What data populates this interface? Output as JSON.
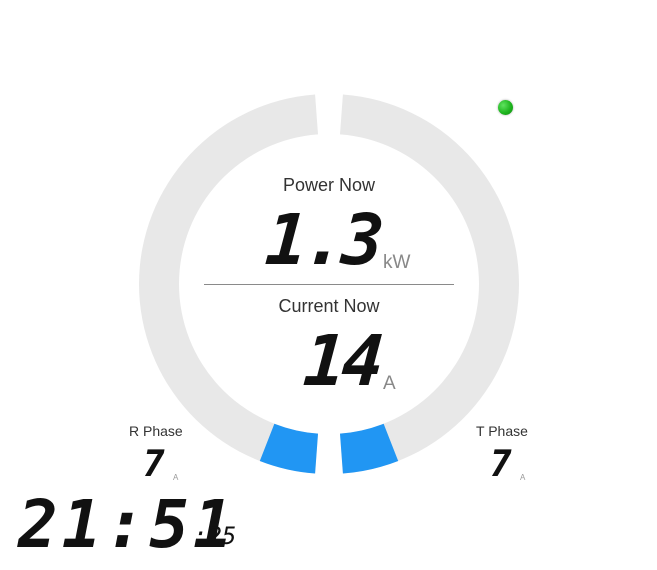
{
  "status": {
    "indicator_color": "#1fb51f"
  },
  "colors": {
    "ring_track": "#e8e8e8",
    "ring_active": "#2196f3"
  },
  "power": {
    "label": "Power Now",
    "value": "1.3",
    "unit": "kW"
  },
  "current": {
    "label": "Current Now",
    "value": "14",
    "unit": "A"
  },
  "phases": {
    "r": {
      "label": "R Phase",
      "value": "7",
      "unit": "A",
      "level": 0.1
    },
    "t": {
      "label": "T Phase",
      "value": "7",
      "unit": "A",
      "level": 0.1
    }
  },
  "clock": {
    "time": "21:51",
    "seconds": ":25"
  }
}
